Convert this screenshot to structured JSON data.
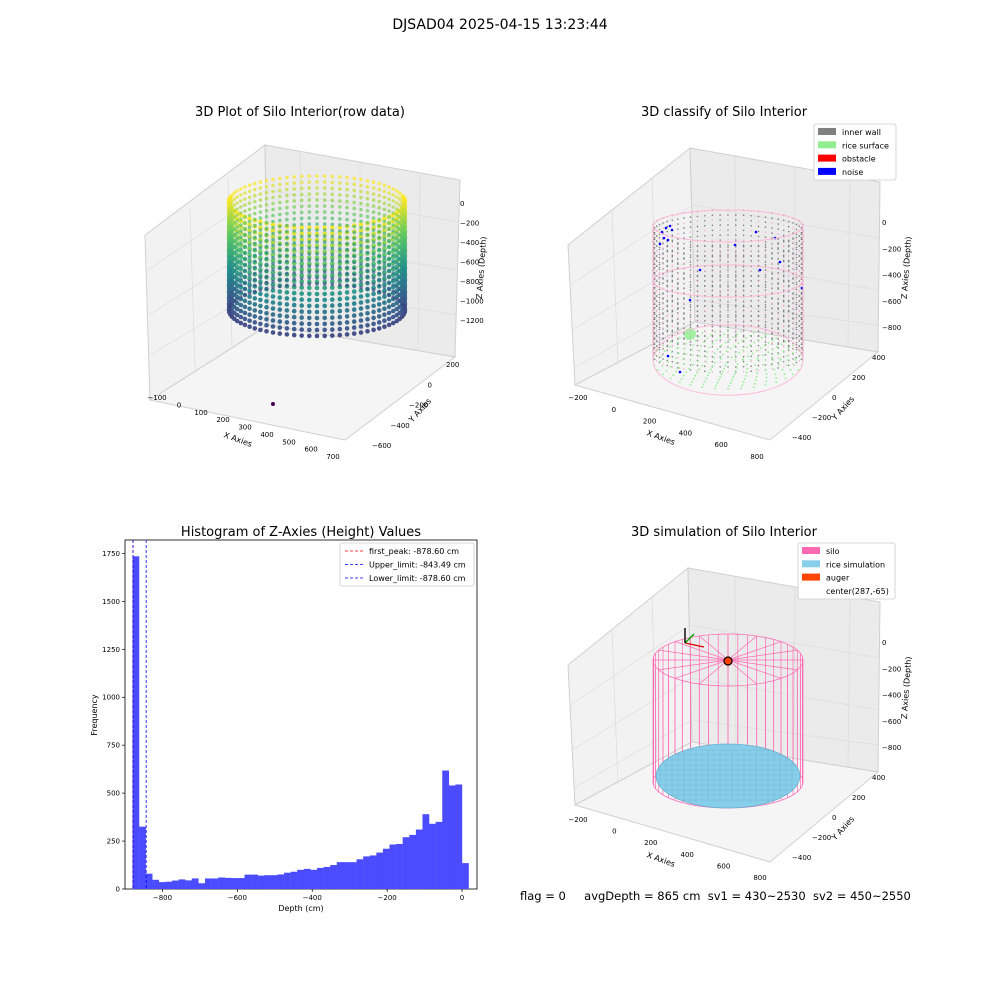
{
  "suptitle": "DJSAD04 2025-04-15 13:23:44",
  "footer": {
    "flag": "flag = 0",
    "avgDepth": "avgDepth = 865 cm",
    "sv1": "sv1 = 430~2530",
    "sv2": "sv2 = 450~2550"
  },
  "colors": {
    "inner_wall": "#808080",
    "rice_surface": "#90ee90",
    "obstacle": "#ff0000",
    "noise": "#0000ff",
    "silo": "#ff69b4",
    "rice_simulation": "#87ceeb",
    "auger": "#ff4500",
    "hist_bar": "#4b4bff",
    "first_peak_line": "#ff0000",
    "limit_line": "#0000ff"
  },
  "chart_data": [
    {
      "type": "scatter",
      "title": "3D Plot of Silo Interior(row data)",
      "xlabel": "X Axies",
      "ylabel": "Y Axies",
      "zlabel": "Z Axies (Depth)",
      "xticks": [
        "−100",
        "0",
        "100",
        "200",
        "300",
        "400",
        "500",
        "600",
        "700"
      ],
      "yticks": [
        "−600",
        "−400",
        "−200",
        "0",
        "200"
      ],
      "zticks": [
        "0",
        "−200",
        "−400",
        "−600",
        "−800",
        "−1000",
        "−1200"
      ],
      "colormap": "viridis",
      "cylinder": {
        "center_x": 287,
        "center_y": -65,
        "radius": 300,
        "top_z": -60,
        "bottom_z": -880
      },
      "outlier_point": {
        "x": 430,
        "y": -300,
        "z": -1400
      }
    },
    {
      "type": "scatter",
      "title": "3D classify of Silo Interior",
      "xlabel": "X Axies",
      "ylabel": "Y Axies",
      "zlabel": "Z Axies (Depth)",
      "xticks": [
        "−200",
        "0",
        "200",
        "400",
        "600",
        "800"
      ],
      "yticks": [
        "−400",
        "−200",
        "0",
        "200",
        "400"
      ],
      "zticks": [
        "0",
        "−200",
        "−400",
        "−600",
        "−800"
      ],
      "legend": [
        "inner wall",
        "rice surface",
        "obstacle",
        "noise"
      ],
      "legend_position": "top-right"
    },
    {
      "type": "bar",
      "title": "Histogram of Z-Axies (Height) Values",
      "xlabel": "Depth (cm)",
      "ylabel": "Frequency",
      "xlim": [
        -900,
        40
      ],
      "ylim": [
        0,
        1820
      ],
      "xticks": [
        -800,
        -600,
        -400,
        -200,
        0
      ],
      "xtick_labels": [
        "−800",
        "−600",
        "−400",
        "−200",
        "0"
      ],
      "yticks": [
        0,
        250,
        500,
        750,
        1000,
        1250,
        1500,
        1750
      ],
      "bin_start": -880,
      "bin_width": 17.6,
      "values": [
        1735,
        325,
        80,
        48,
        36,
        38,
        44,
        50,
        45,
        55,
        30,
        55,
        55,
        60,
        58,
        57,
        57,
        75,
        75,
        70,
        72,
        72,
        76,
        85,
        90,
        100,
        105,
        100,
        110,
        115,
        125,
        140,
        140,
        140,
        155,
        170,
        175,
        190,
        210,
        232,
        235,
        270,
        282,
        310,
        390,
        340,
        350,
        618,
        540,
        545,
        135
      ],
      "lines": [
        {
          "label": "first_peak: -878.60 cm",
          "x": -878.6,
          "style": "dashed"
        },
        {
          "label": "Upper_limit: -843.49 cm",
          "x": -843.49,
          "style": "dashed"
        },
        {
          "label": "Lower_limit: -878.60 cm",
          "x": -878.6,
          "style": "dashed"
        }
      ],
      "legend_position": "top-right"
    },
    {
      "type": "scatter",
      "title": "3D simulation of Silo Interior",
      "xlabel": "X Axies",
      "ylabel": "Y Axies",
      "zlabel": "Z Axies (Depth)",
      "xticks": [
        "−200",
        "0",
        "200",
        "400",
        "600",
        "800"
      ],
      "yticks": [
        "−400",
        "−200",
        "0",
        "200",
        "400"
      ],
      "zticks": [
        "0",
        "−200",
        "−400",
        "−600",
        "−800"
      ],
      "legend": [
        "silo",
        "rice simulation",
        "auger",
        "center(287,-65)"
      ],
      "legend_position": "top-right"
    }
  ]
}
